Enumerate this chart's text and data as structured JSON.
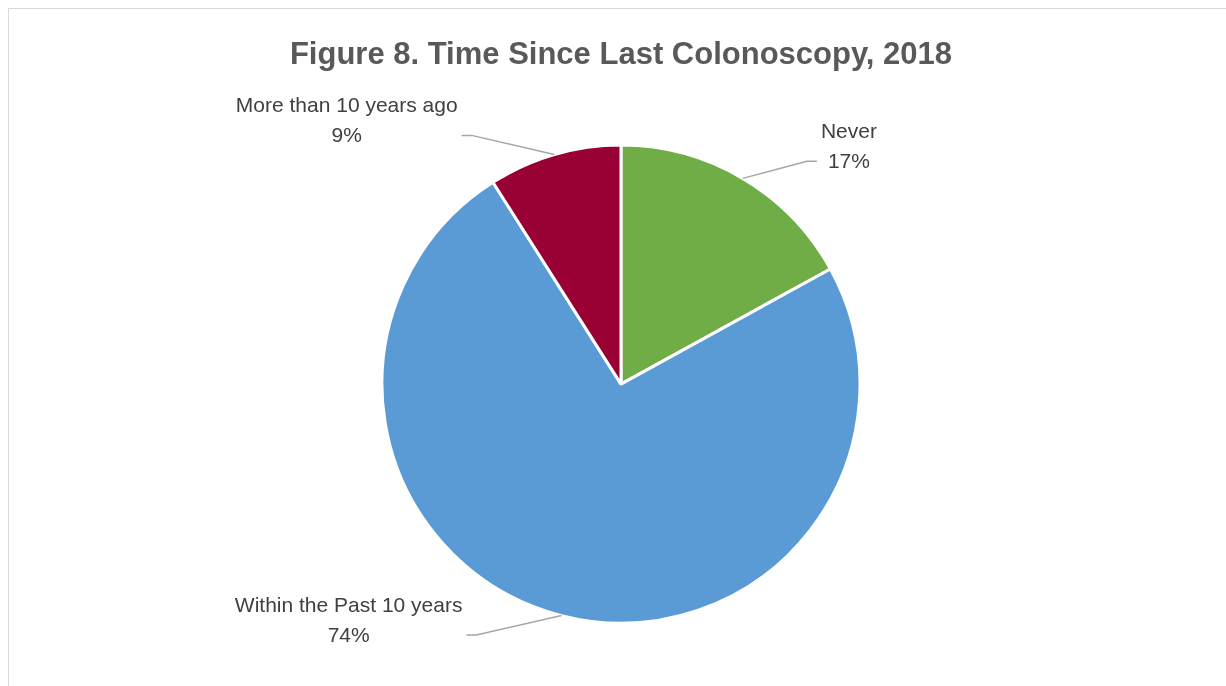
{
  "chart_data": {
    "type": "pie",
    "title": "Figure 8. Time Since Last Colonoscopy, 2018",
    "categories": [
      "Never",
      "Within the Past 10 years",
      "More than 10 years ago"
    ],
    "values": [
      17,
      74,
      9
    ],
    "value_labels": [
      "17%",
      "74%",
      "9%"
    ],
    "colors": [
      "#70ad47",
      "#5b9bd5",
      "#990033"
    ]
  }
}
